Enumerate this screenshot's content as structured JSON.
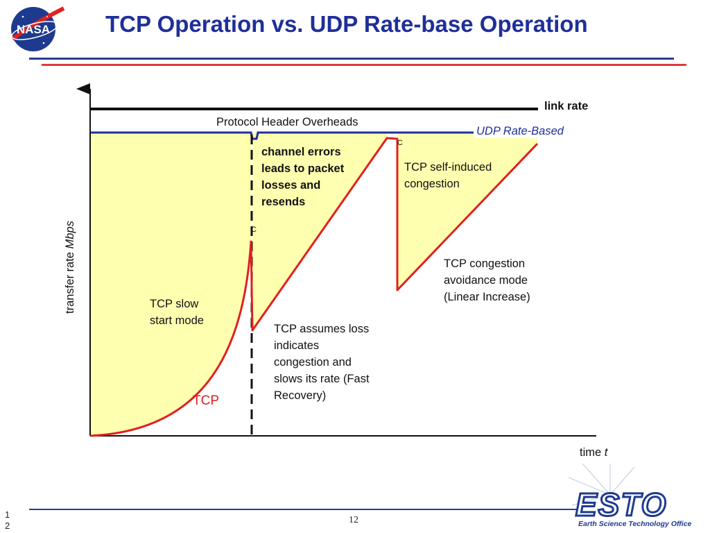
{
  "slide": {
    "title": "TCP Operation vs. UDP Rate-base Operation",
    "page_number": "12",
    "side_number": "1 2",
    "nasa_logo_text": "NASA",
    "esto_logo_text": "ESTO",
    "esto_logo_subtitle": "Earth Science Technology Office"
  },
  "diagram": {
    "y_axis_label": "transfer rate ",
    "y_axis_unit": "Mbps",
    "x_axis_label": "time ",
    "x_axis_unit": "t",
    "link_rate": "link rate",
    "protocol_header": "Protocol Header Overheads",
    "udp_label": "UDP Rate-Based",
    "channel_errors": "channel errors leads to packet losses and resends",
    "self_induced": "TCP self-induced congestion",
    "congestion_avoidance": "TCP congestion avoidance mode (Linear Increase)",
    "slow_start": "TCP slow start mode",
    "tcp_curve_label": "TCP",
    "fast_recovery": "TCP assumes loss indicates congestion and slows its rate (Fast Recovery)",
    "marker_1": "C",
    "marker_2": "C"
  },
  "colors": {
    "title": "#1f2f9a",
    "tcp_line": "#e02020",
    "fill": "#ffffb0",
    "udp_line": "#1f2f9a"
  }
}
